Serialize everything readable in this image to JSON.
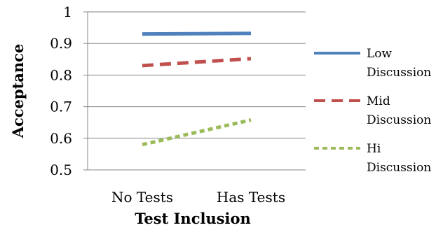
{
  "chart_data": {
    "type": "line",
    "title": "",
    "xlabel": "Test Inclusion",
    "ylabel": "Acceptance",
    "categories": [
      "No Tests",
      "Has Tests"
    ],
    "ylim": [
      0.5,
      1
    ],
    "yticks": [
      "0.5",
      "0.6",
      "0.7",
      "0.8",
      "0.9",
      "1"
    ],
    "grid": true,
    "legend_position": "right",
    "series": [
      {
        "name": "Low Discussion",
        "values": [
          0.93,
          0.932
        ],
        "color": "#4f81bd",
        "dash": "solid",
        "legend_lines": [
          "Low",
          "Discussion"
        ]
      },
      {
        "name": "Mid Discussion",
        "values": [
          0.83,
          0.852
        ],
        "color": "#c0504d",
        "dash": "dashed",
        "legend_lines": [
          "Mid",
          "Discussion"
        ]
      },
      {
        "name": "Hi Discussion",
        "values": [
          0.58,
          0.658
        ],
        "color": "#9bbb59",
        "dash": "dotted",
        "legend_lines": [
          "Hi",
          "Discussion"
        ]
      }
    ]
  }
}
